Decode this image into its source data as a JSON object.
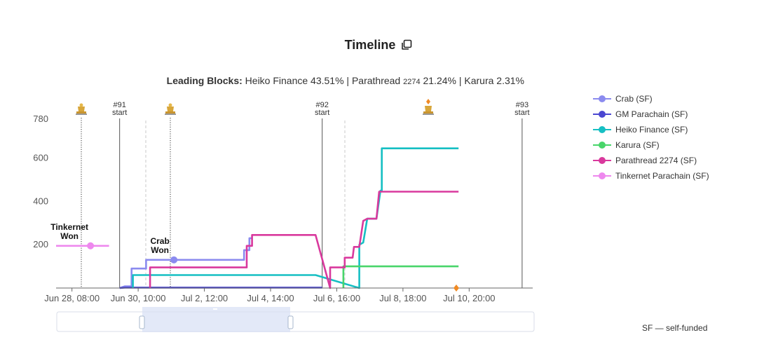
{
  "header": {
    "title": "Timeline",
    "leading_label": "Leading Blocks:",
    "leading_part1": "Heiko Finance 43.51% | Parathread ",
    "leading_small": "2274",
    "leading_part2": " 21.24% | Karura 2.31%"
  },
  "footnote": "SF — self-funded",
  "colors": {
    "crab": "#8b8bef",
    "gm": "#4b47d1",
    "heiko": "#16bfc3",
    "karura": "#48d56a",
    "parathread": "#d9399d",
    "tinkernet": "#ee88ee",
    "auction_end": "#f08a24"
  },
  "chart_data": {
    "type": "line",
    "ylim": [
      0,
      780
    ],
    "y_ticks": [
      "780",
      "600",
      "400",
      "200"
    ],
    "x_ticks": [
      "Jun 28, 08:00",
      "Jun 30, 10:00",
      "Jul 2, 12:00",
      "Jul 4, 14:00",
      "Jul 6, 16:00",
      "Jul 8, 18:00",
      "Jul 10, 20:00"
    ],
    "auction_markers": [
      {
        "label": "#91",
        "sub": "start",
        "time": "Jun 29, 20:00"
      },
      {
        "label": "#92",
        "sub": "start",
        "time": "Jul 6, 05:00"
      },
      {
        "label": "#93",
        "sub": "start",
        "time": "Jul 12, 12:00"
      }
    ],
    "winner_annotations": [
      {
        "line1": "Tinkernet",
        "line2": "Won",
        "time": "Jun 28, 22:00",
        "value": 195
      },
      {
        "line1": "Crab",
        "line2": "Won",
        "time": "Jul 1, 13:00",
        "value": 130
      }
    ],
    "series": [
      {
        "name": "Crab (SF)",
        "color_key": "crab",
        "points": [
          [
            "Jun 29, 20:00",
            0
          ],
          [
            "Jun 30, 00:00",
            8
          ],
          [
            "Jun 30, 05:00",
            8
          ],
          [
            "Jun 30, 05:00",
            90
          ],
          [
            "Jun 30, 16:00",
            90
          ],
          [
            "Jun 30, 16:00",
            130
          ],
          [
            "Jul 3, 18:00",
            130
          ],
          [
            "Jul 3, 18:00",
            175
          ],
          [
            "Jul 3, 22:00",
            175
          ],
          [
            "Jul 3, 22:00",
            230
          ],
          [
            "Jul 4, 00:00",
            230
          ]
        ]
      },
      {
        "name": "GM Parachain (SF)",
        "color_key": "gm",
        "points": [
          [
            "Jun 29, 20:00",
            0
          ],
          [
            "Jun 30, 00:00",
            2
          ],
          [
            "Jul 6, 05:00",
            2
          ]
        ]
      },
      {
        "name": "Heiko Finance (SF)",
        "color_key": "heiko",
        "points": [
          [
            "Jun 30, 06:00",
            0
          ],
          [
            "Jun 30, 06:00",
            60
          ],
          [
            "Jul 6, 00:00",
            60
          ],
          [
            "Jul 7, 09:00",
            0
          ],
          [
            "Jul 7, 09:00",
            200
          ],
          [
            "Jul 7, 12:00",
            210
          ],
          [
            "Jul 7, 15:00",
            320
          ],
          [
            "Jul 7, 22:00",
            320
          ],
          [
            "Jul 8, 01:00",
            450
          ],
          [
            "Jul 8, 02:00",
            450
          ],
          [
            "Jul 8, 02:00",
            645
          ],
          [
            "Jul 10, 12:00",
            645
          ]
        ]
      },
      {
        "name": "Karura (SF)",
        "color_key": "karura",
        "points": [
          [
            "Jul 6, 21:00",
            0
          ],
          [
            "Jul 6, 21:00",
            100
          ],
          [
            "Jul 10, 12:00",
            100
          ]
        ]
      },
      {
        "name": "Parathread 2274 (SF)",
        "color_key": "parathread",
        "points": [
          [
            "Jun 30, 19:00",
            0
          ],
          [
            "Jun 30, 19:00",
            95
          ],
          [
            "Jul 3, 20:00",
            95
          ],
          [
            "Jul 3, 20:00",
            195
          ],
          [
            "Jul 4, 00:00",
            195
          ],
          [
            "Jul 4, 00:00",
            245
          ],
          [
            "Jul 6, 00:00",
            245
          ],
          [
            "Jul 6, 11:00",
            0
          ],
          [
            "Jul 6, 11:00",
            95
          ],
          [
            "Jul 6, 22:00",
            95
          ],
          [
            "Jul 6, 22:00",
            140
          ],
          [
            "Jul 7, 04:00",
            140
          ],
          [
            "Jul 7, 05:00",
            190
          ],
          [
            "Jul 7, 09:00",
            190
          ],
          [
            "Jul 7, 12:00",
            310
          ],
          [
            "Jul 7, 15:00",
            320
          ],
          [
            "Jul 7, 22:00",
            320
          ],
          [
            "Jul 8, 00:00",
            445
          ],
          [
            "Jul 10, 12:00",
            445
          ]
        ]
      },
      {
        "name": "Tinkernet Parachain (SF)",
        "color_key": "tinkernet",
        "points": [
          [
            "Jun 27, 20:00",
            195
          ],
          [
            "Jun 29, 12:00",
            195
          ]
        ]
      }
    ]
  }
}
